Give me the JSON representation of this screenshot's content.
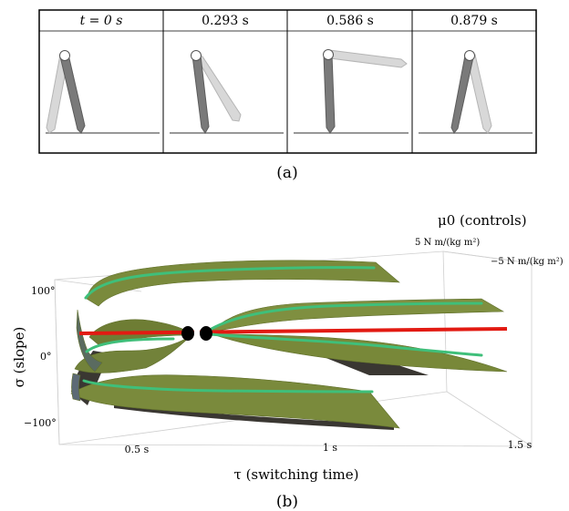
{
  "panel_a": {
    "frames": [
      {
        "label": "t = 0 s"
      },
      {
        "label": "0.293 s"
      },
      {
        "label": "0.586 s"
      },
      {
        "label": "0.879 s"
      }
    ],
    "caption": "(a)"
  },
  "panel_b": {
    "caption": "(b)",
    "y_axis_label": "σ (slope)",
    "x_axis_label": "τ (switching time)",
    "depth_axis_label": "μ0 (controls)",
    "y_ticks": [
      "100°",
      "0°",
      "−100°"
    ],
    "x_ticks": [
      "0.5 s",
      "1 s",
      "1.5 s"
    ],
    "depth_ticks": [
      "5 N m/(kg m²)",
      "−5 N m/(kg m²)"
    ],
    "colors": {
      "surface": "#7a8a3c",
      "surface_dark": "#3a3a2c",
      "curve": "#3fbf7a",
      "trajectory": "#e21a12",
      "fixed_point": "#000000",
      "box": "#cccccc"
    }
  }
}
